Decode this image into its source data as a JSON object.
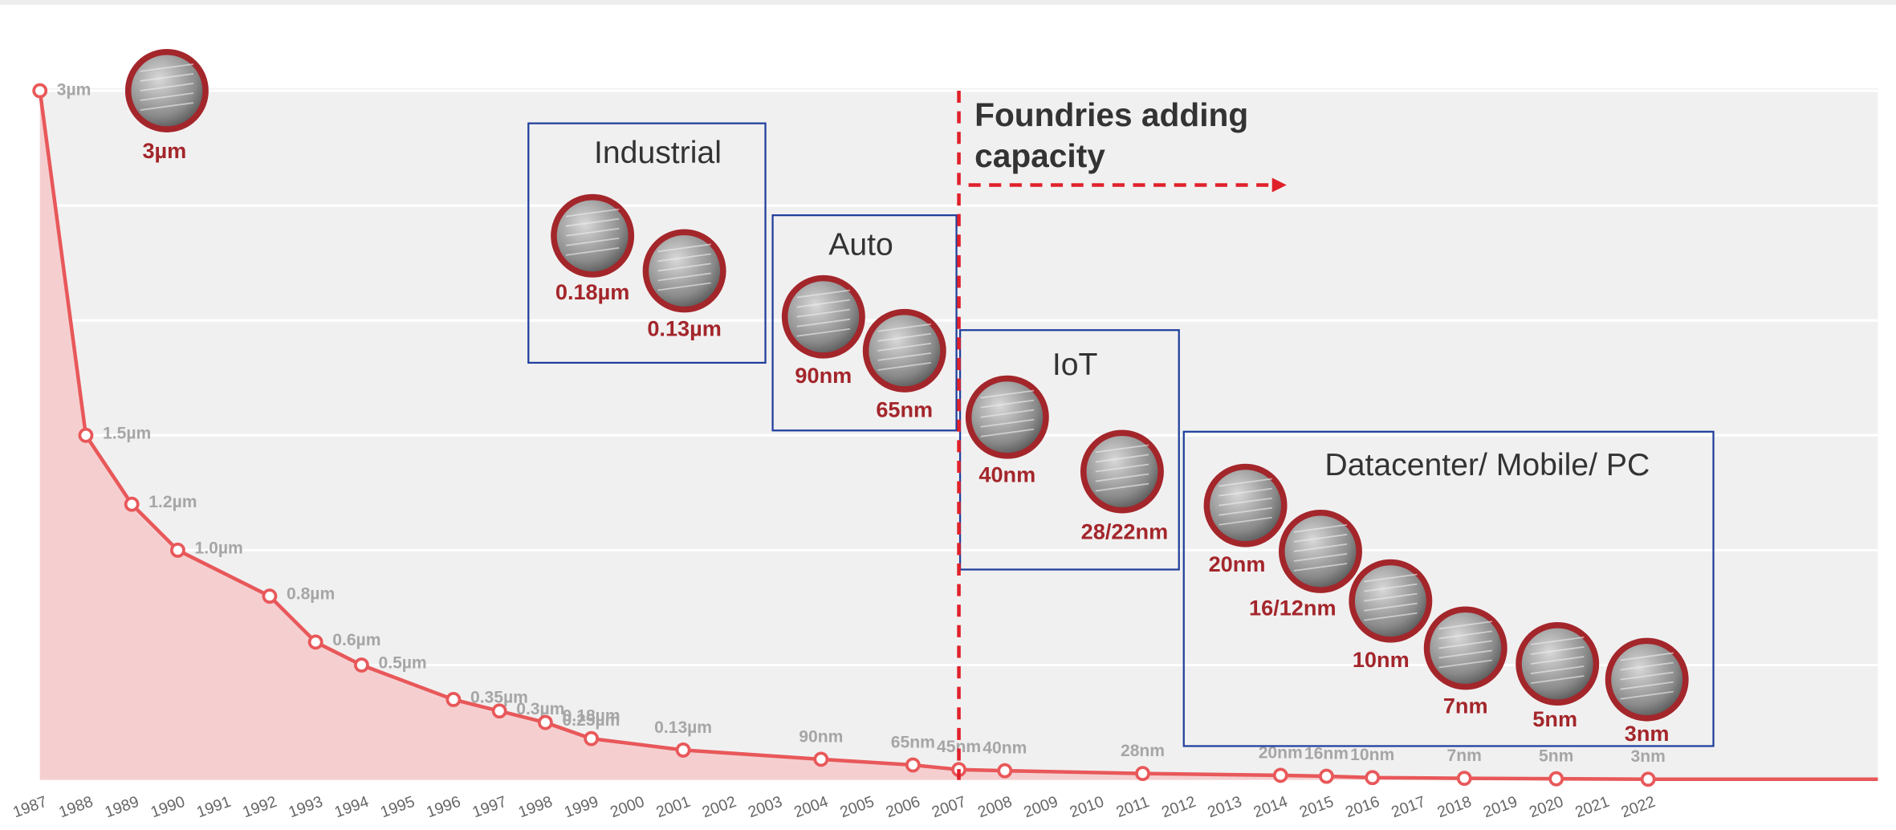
{
  "chart_data": {
    "type": "line",
    "x": [
      1987,
      1988,
      1989,
      1990,
      1992,
      1993,
      1994,
      1996,
      1997,
      1998,
      1999,
      2001,
      2004,
      2006,
      2007,
      2008,
      2011,
      2014,
      2015,
      2016,
      2018,
      2020,
      2022
    ],
    "values": [
      3,
      1.5,
      1.2,
      1.0,
      0.8,
      0.6,
      0.5,
      0.35,
      0.3,
      0.25,
      0.18,
      0.13,
      0.09,
      0.065,
      0.045,
      0.04,
      0.028,
      0.02,
      0.016,
      0.01,
      0.007,
      0.005,
      0.003
    ],
    "value_labels": [
      "3µm",
      "1.5µm",
      "1.2µm",
      "1.0µm",
      "0.8µm",
      "0.6µm",
      "0.5µm",
      "0.35µm",
      "0.3µm",
      "0.25µm",
      "0.18µm",
      "0.13µm",
      "90nm",
      "65nm",
      "45nm",
      "40nm",
      "28nm",
      "20nm",
      "16nm",
      "10nm",
      "7nm",
      "5nm",
      "3nm"
    ],
    "color": "#e8585a",
    "xlim": [
      1987,
      2027
    ],
    "ylim": [
      0,
      3
    ],
    "xticks": [
      1987,
      1988,
      1989,
      1990,
      1991,
      1992,
      1993,
      1994,
      1995,
      1996,
      1997,
      1998,
      1999,
      2000,
      2001,
      2002,
      2003,
      2004,
      2005,
      2006,
      2007,
      2008,
      2009,
      2010,
      2011,
      2012,
      2013,
      2014,
      2015,
      2016,
      2017,
      2018,
      2019,
      2020,
      2021,
      2022
    ],
    "yticks": [
      0,
      0.5,
      1,
      1.5,
      2,
      2.5,
      3
    ],
    "grid": true,
    "annotation": {
      "lines": [
        "Foundries adding",
        "capacity"
      ],
      "x": 2007
    },
    "segments": [
      "Industrial",
      "Auto",
      "IoT",
      "Datacenter/ Mobile/ PC"
    ],
    "callouts": [
      "3µm",
      "0.18µm",
      "0.13µm",
      "90nm",
      "65nm",
      "40nm",
      "28/22nm",
      "20nm",
      "16/12nm",
      "10nm",
      "7nm",
      "5nm",
      "3nm"
    ]
  }
}
